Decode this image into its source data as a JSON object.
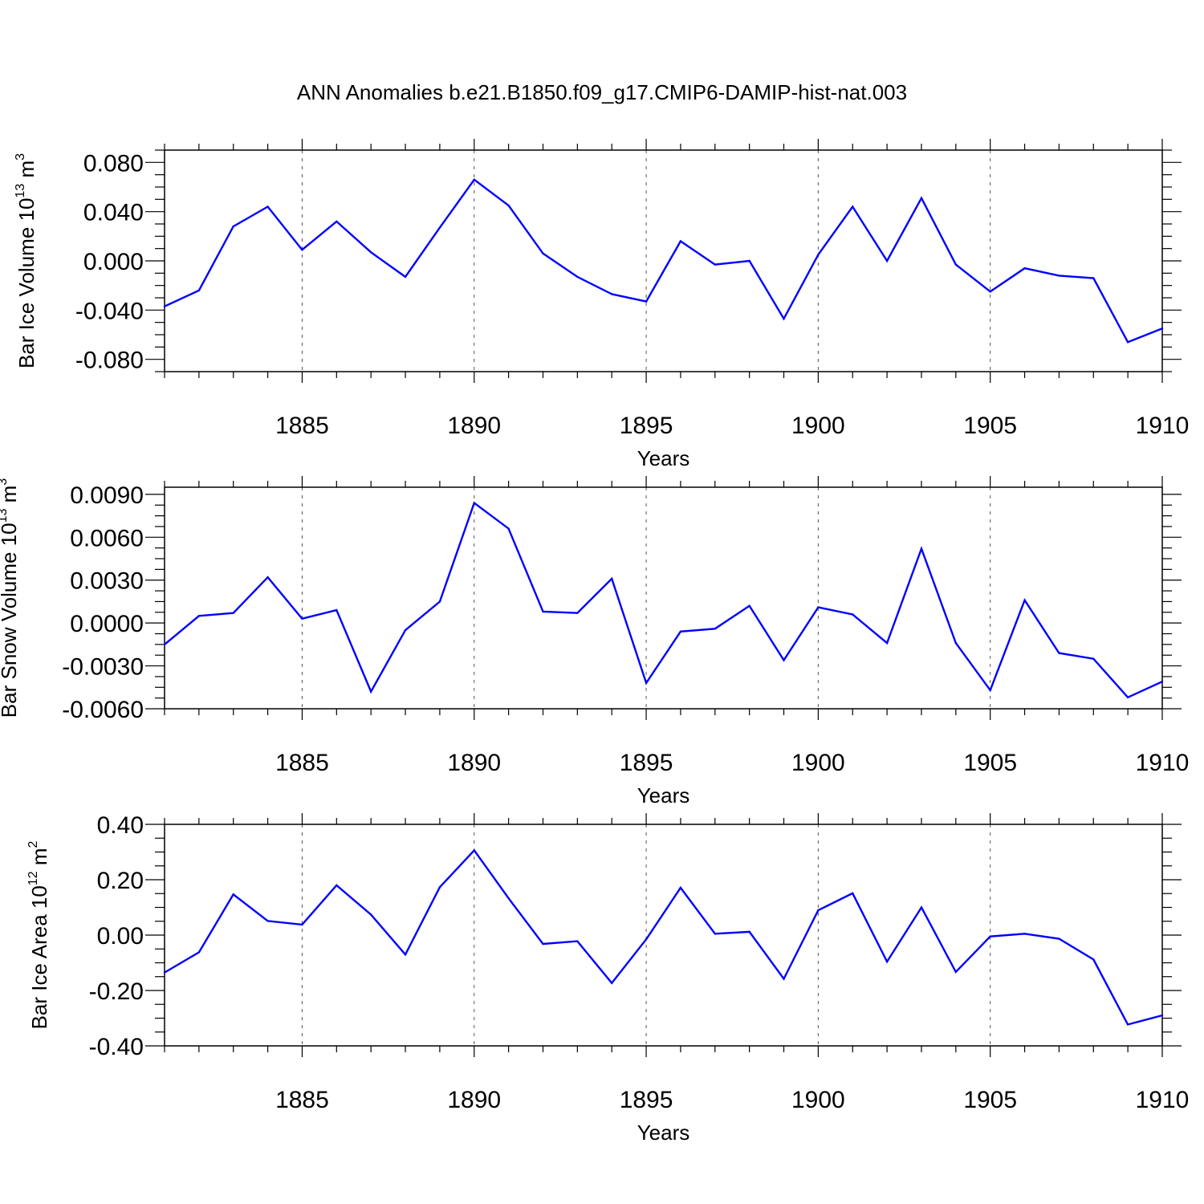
{
  "title": "ANN Anomalies b.e21.B1850.f09_g17.CMIP6-DAMIP-hist-nat.003",
  "line_color": "#0000ff",
  "chart_data": [
    {
      "type": "line",
      "ylabel": {
        "main": "Bar Ice Volume 10",
        "exp": "13",
        "unit": " m",
        "unit_exp": "3"
      },
      "xlabel": "Years",
      "xlim": [
        1881,
        1910
      ],
      "ylim": [
        -0.09,
        0.09
      ],
      "yticks": [
        -0.08,
        -0.04,
        0.0,
        0.04,
        0.08
      ],
      "ytick_labels": [
        "-0.080",
        "-0.040",
        "0.000",
        "0.040",
        "0.080"
      ],
      "xticks": [
        1885,
        1890,
        1895,
        1900,
        1905,
        1910
      ],
      "xtick_labels": [
        "1885",
        "1890",
        "1895",
        "1900",
        "1905",
        "1910"
      ],
      "grid": "dashed vertical at major x ticks",
      "x": [
        1881,
        1882,
        1883,
        1884,
        1885,
        1886,
        1887,
        1888,
        1889,
        1890,
        1891,
        1892,
        1893,
        1894,
        1895,
        1896,
        1897,
        1898,
        1899,
        1900,
        1901,
        1902,
        1903,
        1904,
        1905,
        1906,
        1907,
        1908,
        1909,
        1910
      ],
      "values": [
        -0.037,
        -0.024,
        0.028,
        0.044,
        0.009,
        0.032,
        0.007,
        -0.013,
        0.027,
        0.066,
        0.045,
        0.006,
        -0.013,
        -0.027,
        -0.033,
        0.016,
        -0.003,
        0.0,
        -0.047,
        0.005,
        0.044,
        0.0,
        0.051,
        -0.003,
        -0.025,
        -0.006,
        -0.012,
        -0.014,
        -0.066,
        -0.055
      ]
    },
    {
      "type": "line",
      "ylabel": {
        "main": "Bar Snow Volume 10",
        "exp": "13",
        "unit": " m",
        "unit_exp": "3"
      },
      "xlabel": "Years",
      "xlim": [
        1881,
        1910
      ],
      "ylim": [
        -0.006,
        0.0095
      ],
      "yticks": [
        -0.006,
        -0.003,
        0.0,
        0.003,
        0.006,
        0.009
      ],
      "ytick_labels": [
        "-0.0060",
        "-0.0030",
        "0.0000",
        "0.0030",
        "0.0060",
        "0.0090"
      ],
      "xticks": [
        1885,
        1890,
        1895,
        1900,
        1905,
        1910
      ],
      "xtick_labels": [
        "1885",
        "1890",
        "1895",
        "1900",
        "1905",
        "1910"
      ],
      "grid": "dashed vertical at major x ticks",
      "x": [
        1881,
        1882,
        1883,
        1884,
        1885,
        1886,
        1887,
        1888,
        1889,
        1890,
        1891,
        1892,
        1893,
        1894,
        1895,
        1896,
        1897,
        1898,
        1899,
        1900,
        1901,
        1902,
        1903,
        1904,
        1905,
        1906,
        1907,
        1908,
        1909,
        1910
      ],
      "values": [
        -0.0015,
        0.0005,
        0.0007,
        0.0032,
        0.0003,
        0.0009,
        -0.0048,
        -0.0005,
        0.0015,
        0.0084,
        0.0066,
        0.0008,
        0.0007,
        0.0031,
        -0.0042,
        -0.0006,
        -0.0004,
        0.0012,
        -0.0026,
        0.0011,
        0.0006,
        -0.0014,
        0.0052,
        -0.0014,
        -0.0047,
        0.0016,
        -0.0021,
        -0.0025,
        -0.0052,
        -0.0041
      ]
    },
    {
      "type": "line",
      "ylabel": {
        "main": "Bar Ice Area 10",
        "exp": "12",
        "unit": " m",
        "unit_exp": "2"
      },
      "xlabel": "Years",
      "xlim": [
        1881,
        1910
      ],
      "ylim": [
        -0.4,
        0.4
      ],
      "yticks": [
        -0.4,
        -0.2,
        0.0,
        0.2,
        0.4
      ],
      "ytick_labels": [
        "-0.40",
        "-0.20",
        "0.00",
        "0.20",
        "0.40"
      ],
      "xticks": [
        1885,
        1890,
        1895,
        1900,
        1905,
        1910
      ],
      "xtick_labels": [
        "1885",
        "1890",
        "1895",
        "1900",
        "1905",
        "1910"
      ],
      "grid": "dashed vertical at major x ticks",
      "x": [
        1881,
        1882,
        1883,
        1884,
        1885,
        1886,
        1887,
        1888,
        1889,
        1890,
        1891,
        1892,
        1893,
        1894,
        1895,
        1896,
        1897,
        1898,
        1899,
        1900,
        1901,
        1902,
        1903,
        1904,
        1905,
        1906,
        1907,
        1908,
        1909,
        1910
      ],
      "values": [
        -0.135,
        -0.062,
        0.147,
        0.051,
        0.038,
        0.18,
        0.074,
        -0.07,
        0.173,
        0.306,
        0.133,
        -0.032,
        -0.022,
        -0.173,
        -0.015,
        0.171,
        0.005,
        0.012,
        -0.158,
        0.09,
        0.151,
        -0.096,
        0.1,
        -0.133,
        -0.005,
        0.005,
        -0.013,
        -0.088,
        -0.323,
        -0.29
      ]
    }
  ]
}
